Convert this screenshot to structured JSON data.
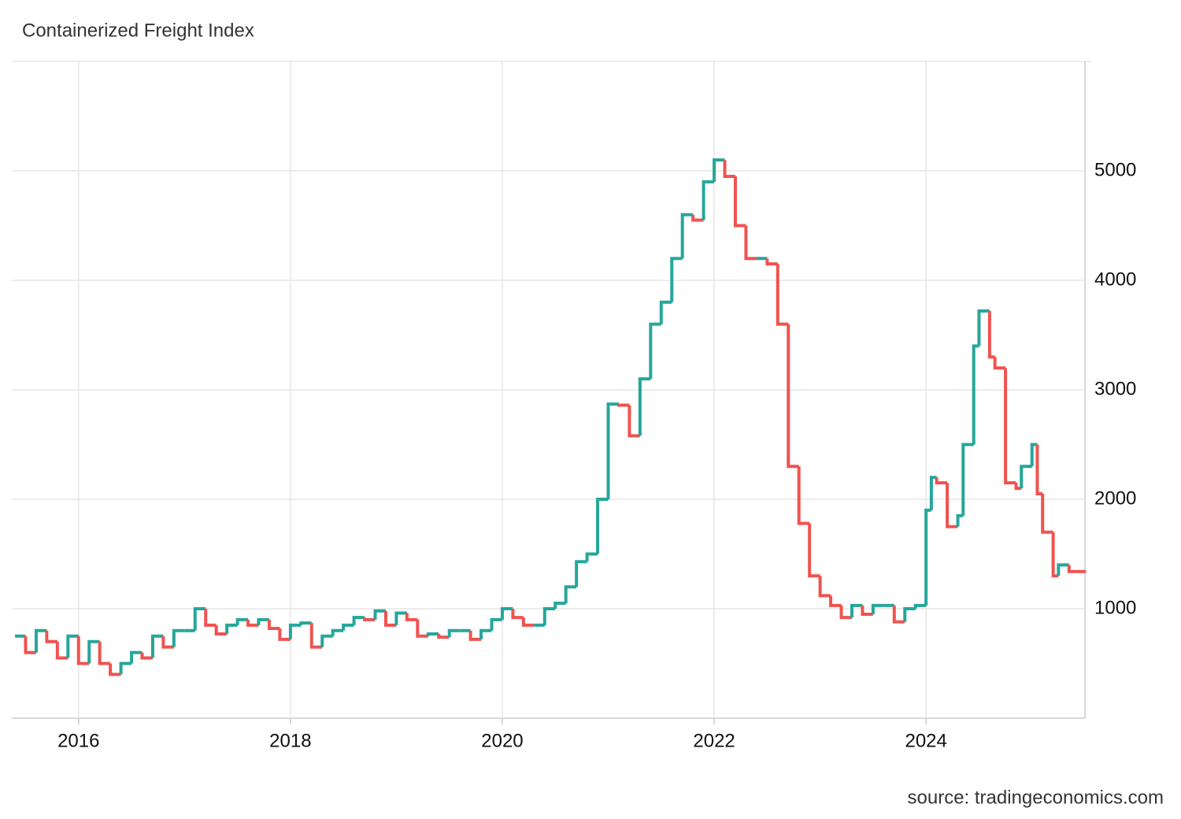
{
  "chart_data": {
    "type": "step",
    "title": "Containerized Freight Index",
    "source": "source: tradingeconomics.com",
    "up_color": "#26a69a",
    "down_color": "#ef5350",
    "grid": true,
    "xlim": [
      2015.37,
      2025.5
    ],
    "xticks": [
      2016,
      2018,
      2020,
      2022,
      2024
    ],
    "ylim": [
      0,
      6000
    ],
    "yticks": [
      1000,
      2000,
      3000,
      4000,
      5000
    ],
    "x": [
      2015.4,
      2015.5,
      2015.6,
      2015.7,
      2015.8,
      2015.9,
      2016.0,
      2016.1,
      2016.2,
      2016.3,
      2016.4,
      2016.5,
      2016.6,
      2016.7,
      2016.8,
      2016.9,
      2017.0,
      2017.1,
      2017.2,
      2017.3,
      2017.4,
      2017.5,
      2017.6,
      2017.7,
      2017.8,
      2017.9,
      2018.0,
      2018.1,
      2018.2,
      2018.3,
      2018.4,
      2018.5,
      2018.6,
      2018.7,
      2018.8,
      2018.9,
      2019.0,
      2019.1,
      2019.2,
      2019.3,
      2019.4,
      2019.5,
      2019.6,
      2019.7,
      2019.8,
      2019.9,
      2020.0,
      2020.1,
      2020.2,
      2020.3,
      2020.4,
      2020.5,
      2020.6,
      2020.7,
      2020.8,
      2020.9,
      2021.0,
      2021.1,
      2021.2,
      2021.3,
      2021.4,
      2021.5,
      2021.6,
      2021.7,
      2021.8,
      2021.9,
      2022.0,
      2022.1,
      2022.2,
      2022.3,
      2022.4,
      2022.5,
      2022.6,
      2022.7,
      2022.8,
      2022.9,
      2023.0,
      2023.1,
      2023.2,
      2023.3,
      2023.4,
      2023.5,
      2023.6,
      2023.7,
      2023.8,
      2023.9,
      2024.0,
      2024.05,
      2024.1,
      2024.2,
      2024.3,
      2024.35,
      2024.45,
      2024.5,
      2024.6,
      2024.65,
      2024.75,
      2024.85,
      2024.9,
      2025.0,
      2025.05,
      2025.1,
      2025.2,
      2025.25,
      2025.35
    ],
    "values": [
      750,
      600,
      800,
      700,
      550,
      750,
      500,
      700,
      500,
      400,
      500,
      600,
      550,
      750,
      650,
      800,
      800,
      1000,
      850,
      770,
      850,
      900,
      850,
      900,
      820,
      720,
      850,
      870,
      650,
      750,
      800,
      850,
      920,
      900,
      980,
      850,
      960,
      900,
      750,
      770,
      740,
      800,
      800,
      720,
      800,
      900,
      1000,
      920,
      850,
      850,
      1000,
      1050,
      1200,
      1430,
      1500,
      2000,
      2870,
      2860,
      2580,
      3100,
      3600,
      3800,
      4200,
      4600,
      4550,
      4900,
      5100,
      4950,
      4500,
      4200,
      4200,
      4150,
      3600,
      2300,
      1780,
      1300,
      1120,
      1030,
      920,
      1030,
      950,
      1030,
      1030,
      880,
      1000,
      1030,
      1900,
      2200,
      2150,
      1750,
      1850,
      2500,
      3400,
      3720,
      3300,
      3200,
      2150,
      2100,
      2300,
      2500,
      2050,
      1700,
      1300,
      1400,
      1340
    ]
  }
}
